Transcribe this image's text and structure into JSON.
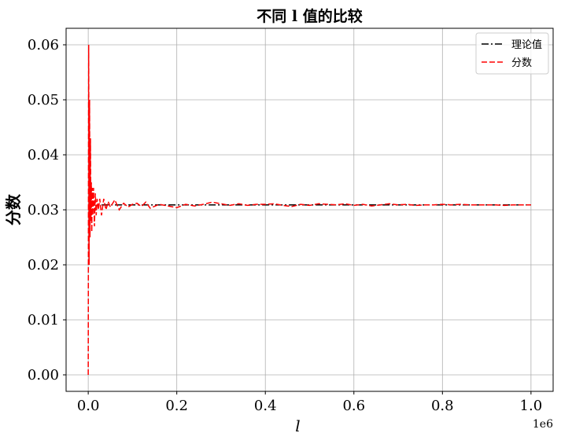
{
  "chart_data": {
    "type": "line",
    "title": "不同 l 值的比较",
    "xlabel": "l",
    "ylabel": "分数",
    "x_offset_label": "1e6",
    "xlim": [
      -0.05,
      1.05
    ],
    "ylim": [
      -0.003,
      0.063
    ],
    "xticks": [
      0.0,
      0.2,
      0.4,
      0.6,
      0.8,
      1.0
    ],
    "xtick_labels": [
      "0.0",
      "0.2",
      "0.4",
      "0.6",
      "0.8",
      "1.0"
    ],
    "yticks": [
      0.0,
      0.01,
      0.02,
      0.03,
      0.04,
      0.05,
      0.06
    ],
    "ytick_labels": [
      "0.00",
      "0.01",
      "0.02",
      "0.03",
      "0.04",
      "0.05",
      "0.06"
    ],
    "grid": true,
    "legend_position": "top-right",
    "series": [
      {
        "name": "理论值",
        "color": "#000000",
        "style": "dashdot",
        "x": [
          0.0,
          1.0
        ],
        "y": [
          0.0309,
          0.0309
        ]
      },
      {
        "name": "分数",
        "color": "#ff0000",
        "style": "dashed",
        "x": [
          0.0,
          0.001,
          0.002,
          0.003,
          0.004,
          0.005,
          0.006,
          0.007,
          0.008,
          0.009,
          0.01,
          0.012,
          0.014,
          0.016,
          0.018,
          0.02,
          0.023,
          0.026,
          0.03,
          0.035,
          0.04,
          0.045,
          0.05,
          0.06,
          0.07,
          0.08,
          0.09,
          0.1,
          0.11,
          0.12,
          0.13,
          0.14,
          0.16,
          0.18,
          0.2,
          0.22,
          0.24,
          0.26,
          0.28,
          0.3,
          0.32,
          0.34,
          0.36,
          0.38,
          0.4,
          0.42,
          0.44,
          0.46,
          0.48,
          0.5,
          0.52,
          0.54,
          0.56,
          0.58,
          0.6,
          0.62,
          0.64,
          0.66,
          0.68,
          0.7,
          0.72,
          0.74,
          0.76,
          0.78,
          0.8,
          0.82,
          0.84,
          0.86,
          0.88,
          0.9,
          0.92,
          0.94,
          0.96,
          0.98,
          1.0
        ],
        "y": [
          0.0,
          0.06,
          0.02,
          0.05,
          0.025,
          0.043,
          0.028,
          0.035,
          0.026,
          0.034,
          0.029,
          0.034,
          0.027,
          0.033,
          0.029,
          0.032,
          0.03,
          0.032,
          0.029,
          0.032,
          0.03,
          0.0315,
          0.0305,
          0.0318,
          0.03,
          0.0312,
          0.0305,
          0.031,
          0.0312,
          0.0306,
          0.0314,
          0.0303,
          0.031,
          0.0307,
          0.0304,
          0.031,
          0.0307,
          0.031,
          0.0314,
          0.0311,
          0.0308,
          0.0311,
          0.0308,
          0.031,
          0.031,
          0.0311,
          0.0308,
          0.0306,
          0.031,
          0.0308,
          0.0311,
          0.031,
          0.0309,
          0.0311,
          0.0308,
          0.031,
          0.0307,
          0.0309,
          0.0311,
          0.0309,
          0.031,
          0.0308,
          0.0309,
          0.0309,
          0.031,
          0.0309,
          0.031,
          0.0309,
          0.0309,
          0.0309,
          0.0309,
          0.0308,
          0.0309,
          0.0309,
          0.0309
        ]
      }
    ]
  }
}
